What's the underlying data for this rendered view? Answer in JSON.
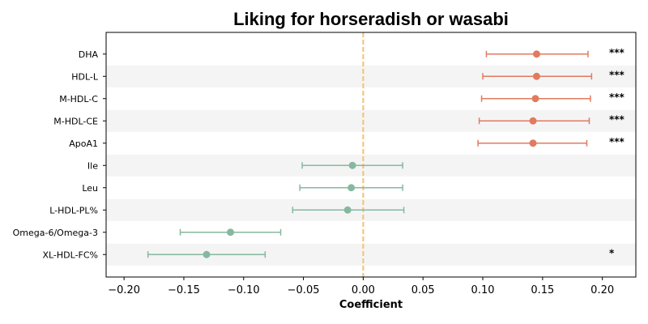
{
  "chart_data": {
    "type": "forest",
    "title": "Liking for horseradish or wasabi",
    "xlabel": "Coefficient",
    "xlim": [
      -0.215,
      0.228
    ],
    "xticks": [
      -0.2,
      -0.15,
      -0.1,
      -0.05,
      0.0,
      0.05,
      0.1,
      0.15,
      0.2
    ],
    "xtick_labels": [
      "−0.20",
      "−0.15",
      "−0.10",
      "−0.05",
      "0.00",
      "0.05",
      "0.10",
      "0.15",
      "0.20"
    ],
    "reference_line": 0.0,
    "colors": {
      "positive": "#e07b60",
      "negative": "#86b8a0",
      "reference": "#f5c16c",
      "band": "#f4f4f4"
    },
    "rows": [
      {
        "label": "DHA",
        "estimate": 0.145,
        "ci_low": 0.103,
        "ci_high": 0.188,
        "significance": "***"
      },
      {
        "label": "HDL-L",
        "estimate": 0.145,
        "ci_low": 0.1,
        "ci_high": 0.191,
        "significance": "***"
      },
      {
        "label": "M-HDL-C",
        "estimate": 0.144,
        "ci_low": 0.099,
        "ci_high": 0.19,
        "significance": "***"
      },
      {
        "label": "M-HDL-CE",
        "estimate": 0.142,
        "ci_low": 0.097,
        "ci_high": 0.189,
        "significance": "***"
      },
      {
        "label": "ApoA1",
        "estimate": 0.142,
        "ci_low": 0.096,
        "ci_high": 0.187,
        "significance": "***"
      },
      {
        "label": "Ile",
        "estimate": -0.009,
        "ci_low": -0.051,
        "ci_high": 0.033,
        "significance": ""
      },
      {
        "label": "Leu",
        "estimate": -0.01,
        "ci_low": -0.053,
        "ci_high": 0.033,
        "significance": ""
      },
      {
        "label": "L-HDL-PL%",
        "estimate": -0.013,
        "ci_low": -0.059,
        "ci_high": 0.034,
        "significance": ""
      },
      {
        "label": "Omega-6/Omega-3",
        "estimate": -0.111,
        "ci_low": -0.153,
        "ci_high": -0.069,
        "significance": ""
      },
      {
        "label": "XL-HDL-FC%",
        "estimate": -0.131,
        "ci_low": -0.18,
        "ci_high": -0.082,
        "significance": "*"
      }
    ]
  }
}
